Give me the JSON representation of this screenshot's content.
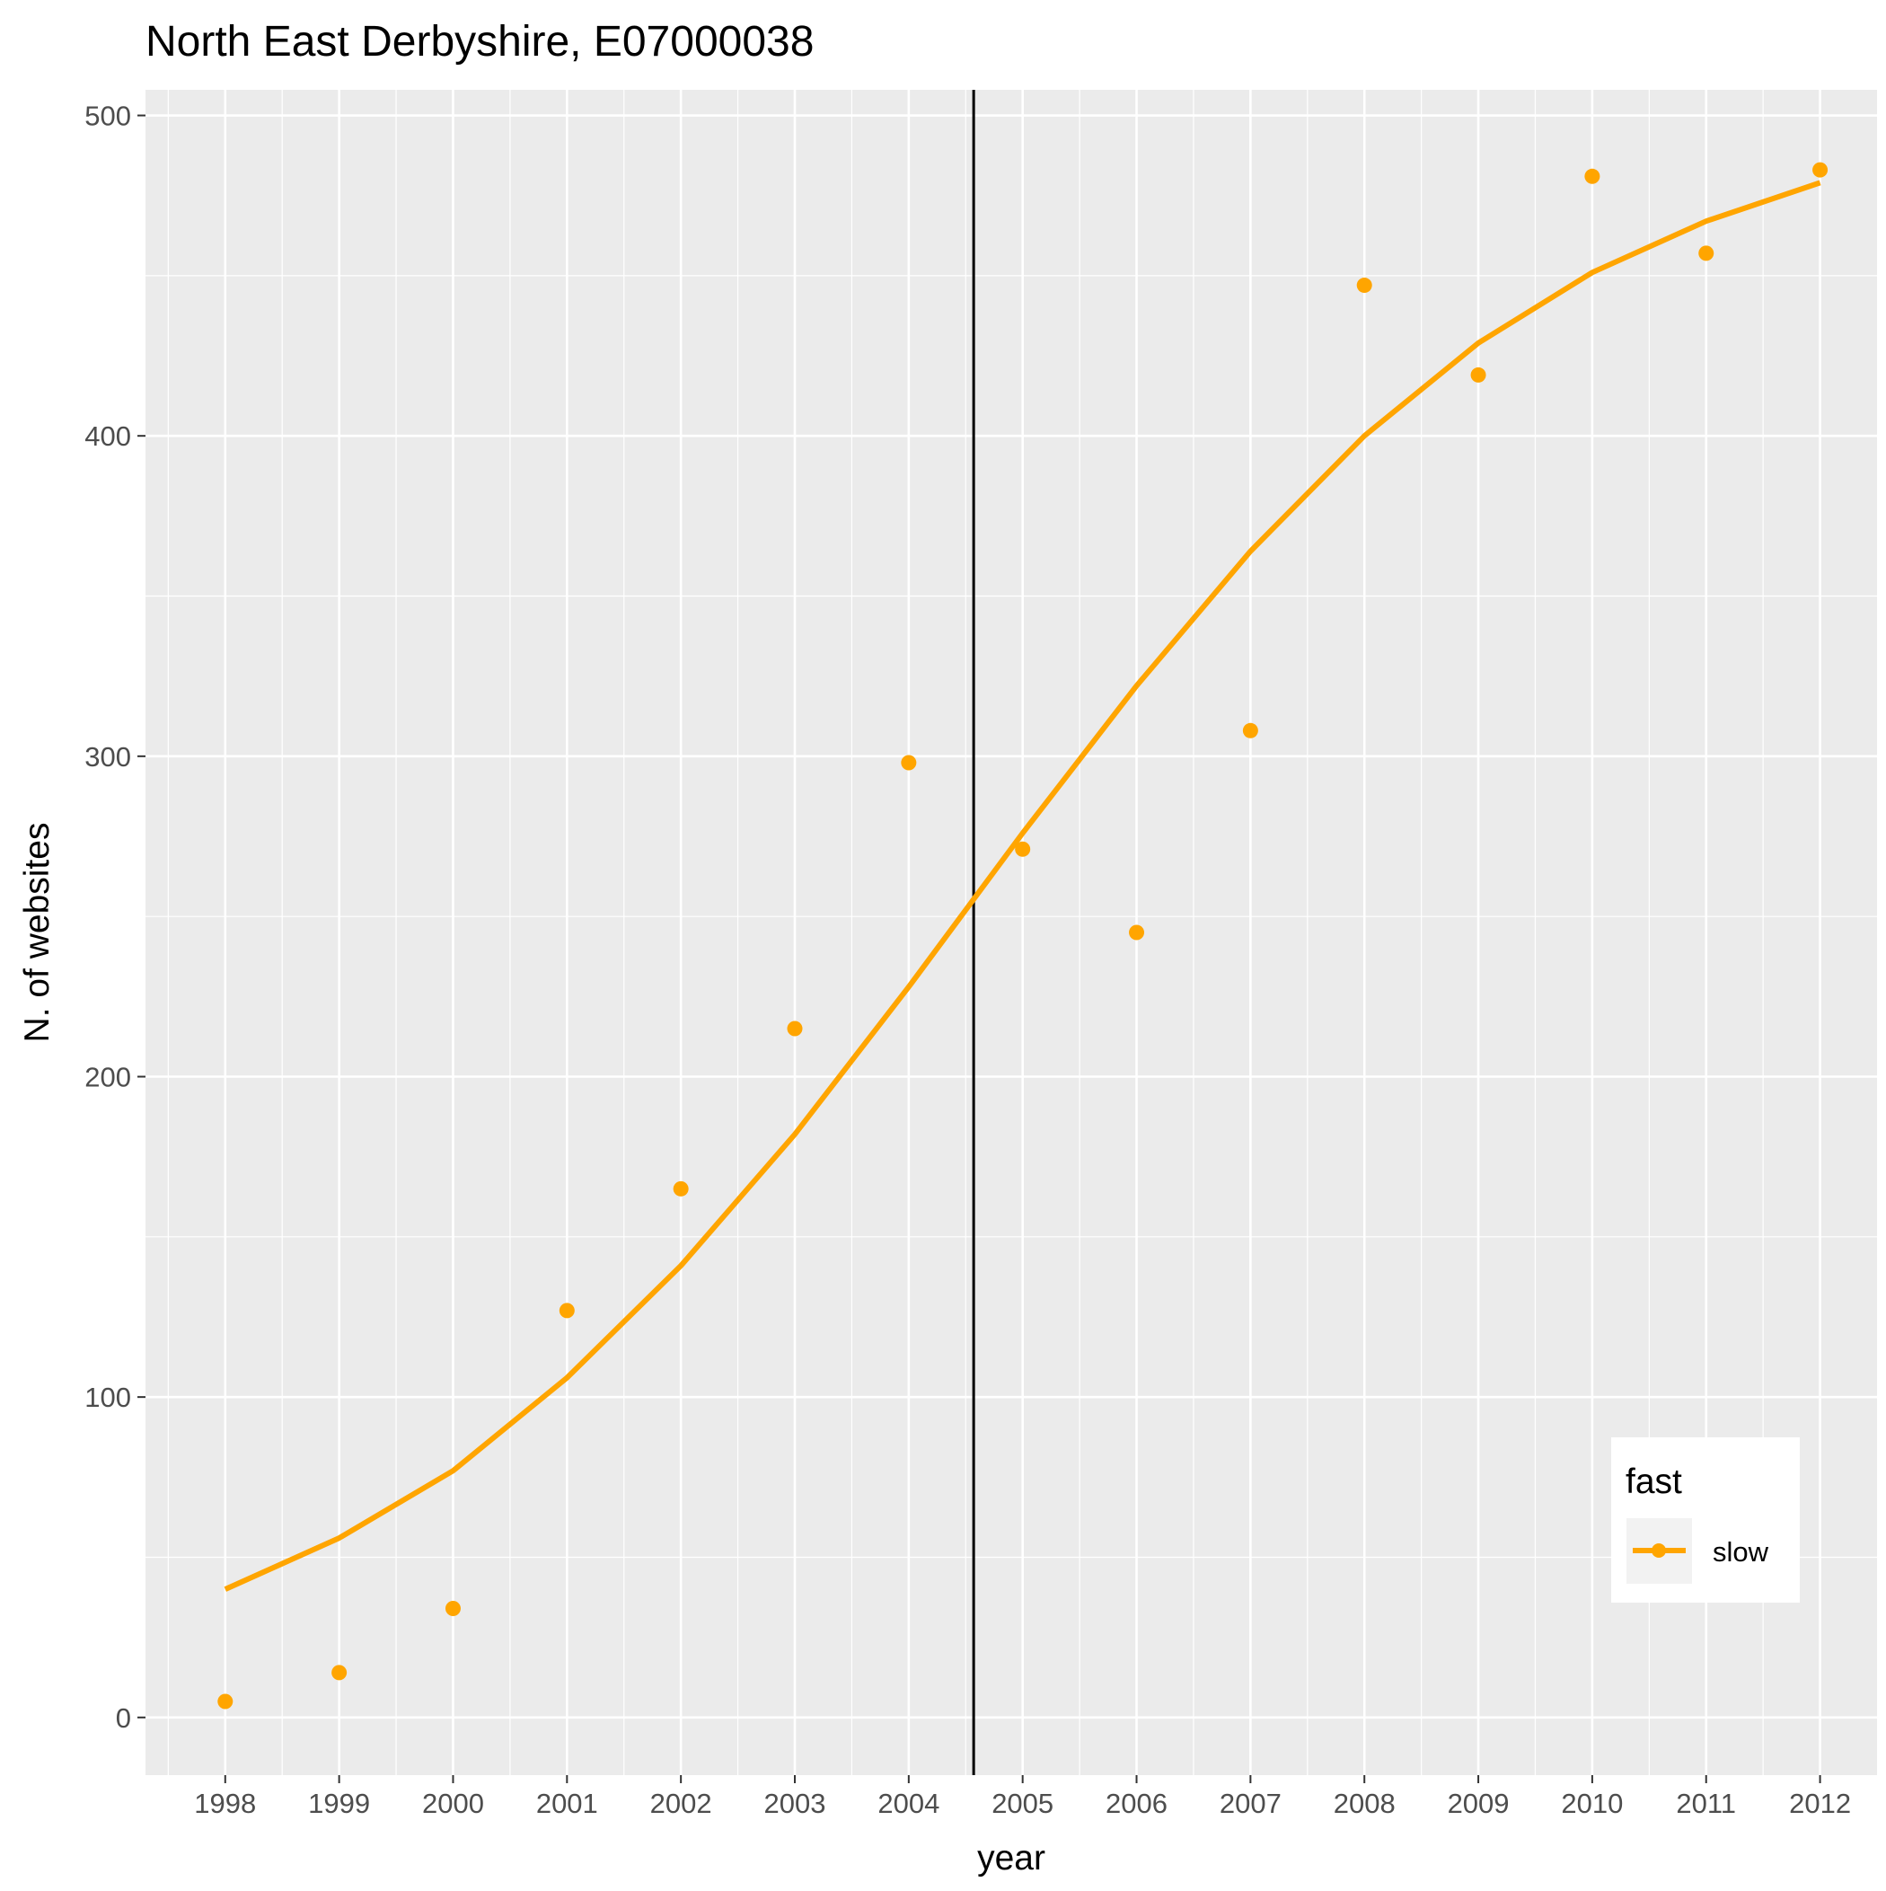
{
  "chart_data": {
    "type": "line",
    "title": "North East Derbyshire, E07000038",
    "xlabel": "year",
    "ylabel": "N. of websites",
    "x_ticks": [
      "1998",
      "1999",
      "2000",
      "2001",
      "2002",
      "2003",
      "2004",
      "2005",
      "2006",
      "2007",
      "2008",
      "2009",
      "2010",
      "2011",
      "2012"
    ],
    "y_ticks": [
      "0",
      "100",
      "200",
      "300",
      "400",
      "500"
    ],
    "xlim": [
      1997.3,
      2012.5
    ],
    "ylim": [
      -18,
      508
    ],
    "grid": true,
    "background": "#ebebeb",
    "vline_x": 2004.57,
    "legend": {
      "title": "fast",
      "placement": "bottom-right",
      "entries": [
        "slow"
      ]
    },
    "series": [
      {
        "name": "slow",
        "color": "#ffa500",
        "points": [
          {
            "x": 1998,
            "y": 5
          },
          {
            "x": 1999,
            "y": 14
          },
          {
            "x": 2000,
            "y": 34
          },
          {
            "x": 2001,
            "y": 127
          },
          {
            "x": 2002,
            "y": 165
          },
          {
            "x": 2003,
            "y": 215
          },
          {
            "x": 2004,
            "y": 298
          },
          {
            "x": 2005,
            "y": 271
          },
          {
            "x": 2006,
            "y": 245
          },
          {
            "x": 2007,
            "y": 308
          },
          {
            "x": 2008,
            "y": 447
          },
          {
            "x": 2009,
            "y": 419
          },
          {
            "x": 2010,
            "y": 481
          },
          {
            "x": 2011,
            "y": 457
          },
          {
            "x": 2012,
            "y": 483
          }
        ],
        "smooth": [
          {
            "x": 1998,
            "y": 40
          },
          {
            "x": 1999,
            "y": 56
          },
          {
            "x": 2000,
            "y": 77
          },
          {
            "x": 2001,
            "y": 106
          },
          {
            "x": 2002,
            "y": 141
          },
          {
            "x": 2003,
            "y": 182
          },
          {
            "x": 2004,
            "y": 228
          },
          {
            "x": 2005,
            "y": 276
          },
          {
            "x": 2006,
            "y": 322
          },
          {
            "x": 2007,
            "y": 364
          },
          {
            "x": 2008,
            "y": 400
          },
          {
            "x": 2009,
            "y": 429
          },
          {
            "x": 2010,
            "y": 451
          },
          {
            "x": 2011,
            "y": 467
          },
          {
            "x": 2012,
            "y": 479
          }
        ]
      }
    ]
  }
}
